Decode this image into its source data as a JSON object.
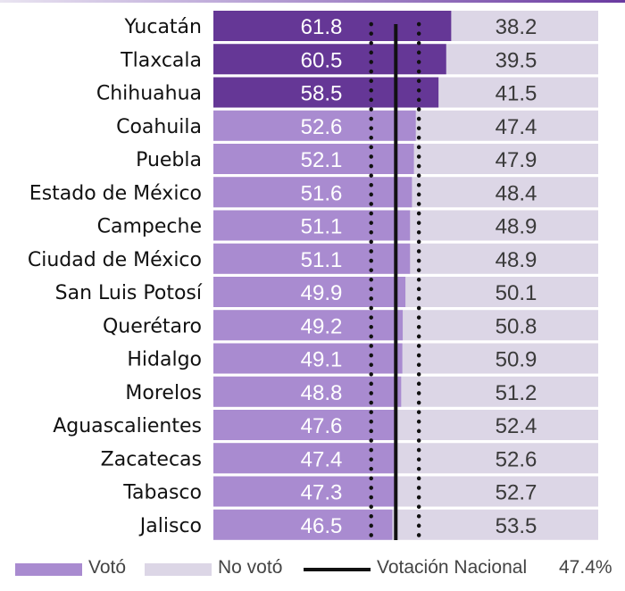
{
  "colors": {
    "voto_highlight": "#653796",
    "voto": "#a98bd0",
    "no_voto": "#dcd6e6",
    "national_line": "#111111",
    "label_text": "#111111",
    "value_text_dark": "#3a3a3a",
    "value_text_light": "#ffffff"
  },
  "chart_data": {
    "type": "bar",
    "orientation": "horizontal",
    "stacked": true,
    "xlim": [
      0,
      100
    ],
    "categories": [
      "Yucatán",
      "Tlaxcala",
      "Chihuahua",
      "Coahuila",
      "Puebla",
      "Estado de México",
      "Campeche",
      "Ciudad de México",
      "San Luis Potosí",
      "Querétaro",
      "Hidalgo",
      "Morelos",
      "Aguascalientes",
      "Zacatecas",
      "Tabasco",
      "Jalisco"
    ],
    "series": [
      {
        "name": "Votó",
        "values": [
          61.8,
          60.5,
          58.5,
          52.6,
          52.1,
          51.6,
          51.1,
          51.1,
          49.9,
          49.2,
          49.1,
          48.8,
          47.6,
          47.4,
          47.3,
          46.5
        ]
      },
      {
        "name": "No votó",
        "values": [
          38.2,
          39.5,
          41.5,
          47.4,
          47.9,
          48.4,
          48.9,
          48.9,
          50.1,
          50.8,
          50.9,
          51.2,
          52.4,
          52.6,
          52.7,
          53.5
        ]
      }
    ],
    "value_labels_voto": [
      "61.8",
      "60.5",
      "58.5",
      "52.6",
      "52.1",
      "51.6",
      "51.1",
      "51.1",
      "49.9",
      "49.2",
      "49.1",
      "48.8",
      "47.6",
      "47.4",
      "47.3",
      "46.5"
    ],
    "value_labels_no_voto": [
      "38.2",
      "39.5",
      "41.5",
      "47.4",
      "47.9",
      "48.4",
      "48.9",
      "48.9",
      "50.1",
      "50.8",
      "50.9",
      "51.2",
      "52.4",
      "52.6",
      "52.7",
      "53.5"
    ],
    "highlighted_count": 3,
    "reference_line": {
      "name": "Votación Nacional",
      "value": 47.4
    },
    "reference_band_dotted": [
      41.0,
      53.4
    ],
    "grid": false,
    "legend_position": "bottom"
  },
  "legend": {
    "voto_label": "Votó",
    "no_voto_label": "No votó",
    "national_label": "Votación Nacional",
    "national_value": "47.4%"
  }
}
